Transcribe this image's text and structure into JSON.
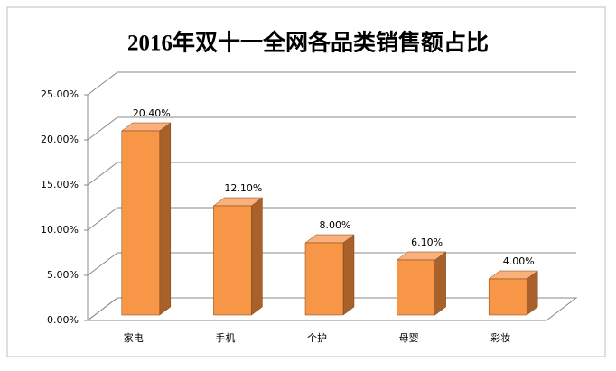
{
  "chart_data": {
    "type": "bar3d",
    "title": "2016年双十一全网各品类销售额占比",
    "categories": [
      "家电",
      "手机",
      "个护",
      "母婴",
      "彩妆"
    ],
    "values": [
      20.4,
      12.1,
      8.0,
      6.1,
      4.0
    ],
    "value_labels": [
      "20.40%",
      "12.10%",
      "8.00%",
      "6.10%",
      "4.00%"
    ],
    "color": "#f79646",
    "ylim": [
      0,
      25
    ],
    "yticks": [
      {
        "value": 0,
        "label": "0.00%"
      },
      {
        "value": 5,
        "label": "5.00%"
      },
      {
        "value": 10,
        "label": "10.00%"
      },
      {
        "value": 15,
        "label": "15.00%"
      },
      {
        "value": 20,
        "label": "20.00%"
      },
      {
        "value": 25,
        "label": "25.00%"
      }
    ],
    "grid": true
  }
}
